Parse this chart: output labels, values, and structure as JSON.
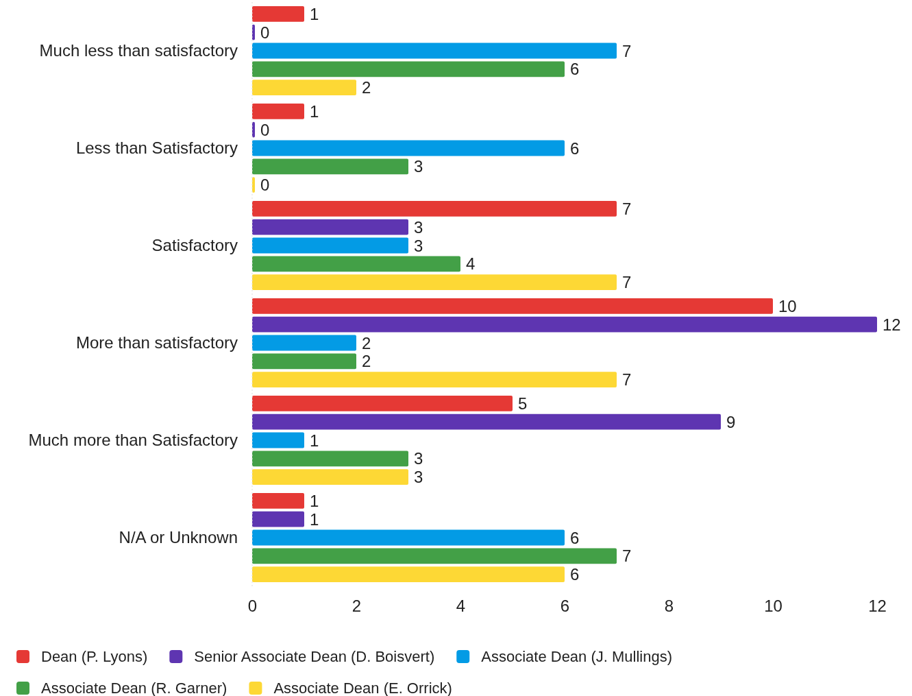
{
  "chart_data": {
    "type": "bar",
    "orientation": "horizontal",
    "categories": [
      "Much less than satisfactory",
      "Less than Satisfactory",
      "Satisfactory",
      "More than satisfactory",
      "Much more than Satisfactory",
      "N/A or Unknown"
    ],
    "series": [
      {
        "name": "Dean (P. Lyons)",
        "color": "#e53935",
        "values": [
          1,
          1,
          7,
          10,
          5,
          1
        ]
      },
      {
        "name": "Senior Associate Dean (D. Boisvert)",
        "color": "#5e35b1",
        "values": [
          0,
          0,
          3,
          12,
          9,
          1
        ]
      },
      {
        "name": "Associate Dean (J. Mullings)",
        "color": "#039be5",
        "values": [
          7,
          6,
          3,
          2,
          1,
          6
        ]
      },
      {
        "name": "Associate Dean (R. Garner)",
        "color": "#43a047",
        "values": [
          6,
          3,
          4,
          2,
          3,
          7
        ]
      },
      {
        "name": "Associate Dean (E. Orrick)",
        "color": "#fdd835",
        "values": [
          2,
          0,
          7,
          7,
          3,
          6
        ]
      }
    ],
    "xlim": [
      0,
      12
    ],
    "xticks": [
      0,
      2,
      4,
      6,
      8,
      10,
      12
    ],
    "data_labels": true,
    "legend": "bottom"
  }
}
